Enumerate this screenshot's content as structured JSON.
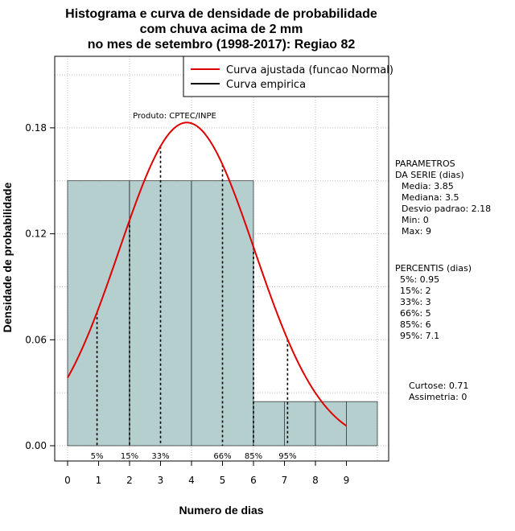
{
  "chart_data": {
    "type": "bar",
    "title_lines": [
      "Histograma e curva de densidade de probabilidade",
      "com chuva acima de 2 mm",
      "no mes de setembro (1998-2017): Regiao 82"
    ],
    "xlabel": "Numero de dias",
    "ylabel": "Densidade de probabilidade",
    "xlim": [
      0,
      10
    ],
    "ylim": [
      0,
      0.21
    ],
    "x_ticks": [
      0,
      1,
      2,
      3,
      4,
      5,
      6,
      7,
      8,
      9
    ],
    "y_ticks": [
      0.0,
      0.06,
      0.12,
      0.18
    ],
    "y_tick_labels": [
      "0.00",
      "0.06",
      "0.12",
      "0.18"
    ],
    "grid": true,
    "bars": [
      {
        "x0": 0,
        "x1": 2,
        "density": 0.15
      },
      {
        "x0": 2,
        "x1": 4,
        "density": 0.15
      },
      {
        "x0": 4,
        "x1": 6,
        "density": 0.15
      },
      {
        "x0": 6,
        "x1": 8,
        "density": 0.025
      },
      {
        "x0": 8,
        "x1": 10,
        "density": 0.025
      }
    ],
    "bar_color": "#b5cfcf",
    "bar_edges_extra": [
      1,
      3,
      5,
      7,
      9
    ],
    "normal_curve": {
      "mean": 3.85,
      "sd": 2.18,
      "from": 0,
      "to": 9,
      "color": "#e00000"
    },
    "percentile_lines": [
      {
        "label": "5%",
        "x": 0.95
      },
      {
        "label": "15%",
        "x": 2
      },
      {
        "label": "33%",
        "x": 3
      },
      {
        "label": "66%",
        "x": 5
      },
      {
        "label": "85%",
        "x": 6
      },
      {
        "label": "95%",
        "x": 7.1
      }
    ],
    "legend": [
      {
        "label": "Curva ajustada (funcao Normal)",
        "color": "#e00000"
      },
      {
        "label": "Curva empirica",
        "color": "#000000"
      }
    ],
    "annotation": "Produto: CPTEC/INPE"
  },
  "side_panel": {
    "params_title_1": "PARAMETROS",
    "params_title_2": "DA SERIE (dias)",
    "params": [
      "Media: 3.85",
      "Mediana: 3.5",
      "Desvio padrao: 2.18",
      "Min: 0",
      "Max: 9"
    ],
    "percentis_title": "PERCENTIS (dias)",
    "percentis": [
      "5%: 0.95",
      "15%: 2",
      "33%: 3",
      "66%: 5",
      "85%: 6",
      "95%: 7.1"
    ],
    "curtose": "Curtose: 0.71",
    "assimetria": "Assimetria: 0"
  }
}
